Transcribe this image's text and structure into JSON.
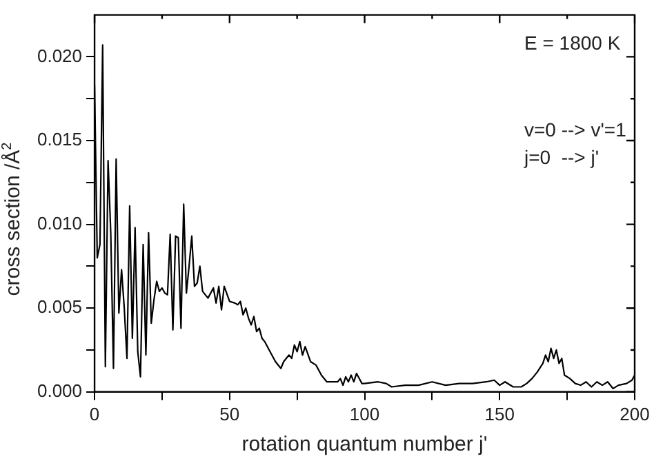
{
  "chart_data": {
    "type": "line",
    "xlabel": "rotation quantum number j'",
    "ylabel": "cross section /Å$^{2}$",
    "annotations": [
      "E = 1800 K",
      "v=0 --> v'=1",
      "j=0  --> j'"
    ],
    "xlim": [
      0,
      200
    ],
    "xticks": [
      0,
      {
        "value": 25,
        "label": null
      },
      50,
      {
        "value": 75,
        "label": null
      },
      100,
      {
        "value": 125,
        "label": null
      },
      150,
      {
        "value": 175,
        "label": null
      },
      200
    ],
    "ylim": [
      0,
      0.0225
    ],
    "yticks": [
      {
        "value": 0,
        "label": "0.000"
      },
      {
        "value": 0.0025,
        "label": null
      },
      {
        "value": 0.005,
        "label": "0.005"
      },
      {
        "value": 0.0075,
        "label": null
      },
      {
        "value": 0.01,
        "label": "0.010"
      },
      {
        "value": 0.0125,
        "label": null
      },
      {
        "value": 0.015,
        "label": "0.015"
      },
      {
        "value": 0.0175,
        "label": null
      },
      {
        "value": 0.02,
        "label": "0.020"
      }
    ],
    "grid": false,
    "legend": false,
    "marker": "none",
    "line_style": "solid",
    "series": [
      {
        "color": "#000000",
        "x": [
          0,
          1,
          2,
          3,
          4,
          5,
          6,
          7,
          8,
          9,
          10,
          11,
          12,
          13,
          14,
          15,
          16,
          17,
          18,
          19,
          20,
          21,
          22,
          23,
          24,
          25,
          26,
          27,
          28,
          29,
          30,
          31,
          32,
          33,
          34,
          35,
          36,
          37,
          38,
          39,
          40,
          42,
          44,
          45,
          46,
          47,
          48,
          50,
          52,
          53,
          54,
          55,
          56,
          57,
          58,
          59,
          60,
          61,
          62,
          63,
          65,
          67,
          69,
          70,
          72,
          73,
          74,
          75,
          76,
          77,
          78,
          80,
          82,
          84,
          86,
          88,
          90,
          91,
          92,
          93,
          94,
          95,
          96,
          97,
          98,
          99,
          100,
          105,
          108,
          110,
          115,
          120,
          125,
          130,
          135,
          140,
          145,
          148,
          150,
          152,
          155,
          158,
          160,
          162,
          164,
          166,
          167,
          168,
          169,
          170,
          171,
          172,
          173,
          174,
          176,
          178,
          180,
          182,
          184,
          186,
          188,
          190,
          192,
          194,
          197,
          199,
          200
        ],
        "values": [
          0.0183,
          0.008,
          0.0088,
          0.0207,
          0.0015,
          0.0138,
          0.0095,
          0.0014,
          0.0139,
          0.0047,
          0.0073,
          0.005,
          0.002,
          0.0111,
          0.0032,
          0.0098,
          0.0024,
          0.0009,
          0.0088,
          0.0022,
          0.0095,
          0.0041,
          0.0055,
          0.0066,
          0.006,
          0.0062,
          0.0059,
          0.0058,
          0.0094,
          0.0037,
          0.0093,
          0.0092,
          0.0038,
          0.0112,
          0.0059,
          0.0075,
          0.0093,
          0.0063,
          0.0065,
          0.0075,
          0.006,
          0.0056,
          0.0062,
          0.0053,
          0.0063,
          0.0049,
          0.0063,
          0.0054,
          0.0053,
          0.0052,
          0.0054,
          0.0046,
          0.005,
          0.0044,
          0.004,
          0.0045,
          0.0036,
          0.0038,
          0.0032,
          0.003,
          0.0024,
          0.0018,
          0.0014,
          0.0018,
          0.0022,
          0.002,
          0.0028,
          0.0024,
          0.003,
          0.0022,
          0.0027,
          0.0018,
          0.0016,
          0.001,
          0.0006,
          0.0006,
          0.0006,
          0.0008,
          0.0004,
          0.0009,
          0.0006,
          0.001,
          0.0006,
          0.0011,
          0.0008,
          0.0005,
          0.0005,
          0.0006,
          0.0005,
          0.0003,
          0.0004,
          0.0004,
          0.0006,
          0.0004,
          0.0005,
          0.0005,
          0.0006,
          0.0007,
          0.0004,
          0.0006,
          0.0003,
          0.0003,
          0.0005,
          0.0008,
          0.0012,
          0.0017,
          0.0022,
          0.0018,
          0.0026,
          0.002,
          0.0025,
          0.0017,
          0.002,
          0.001,
          0.0008,
          0.0005,
          0.0004,
          0.0006,
          0.0003,
          0.0006,
          0.0004,
          0.0006,
          0.0002,
          0.0004,
          0.0005,
          0.0007,
          0.001
        ]
      }
    ]
  }
}
